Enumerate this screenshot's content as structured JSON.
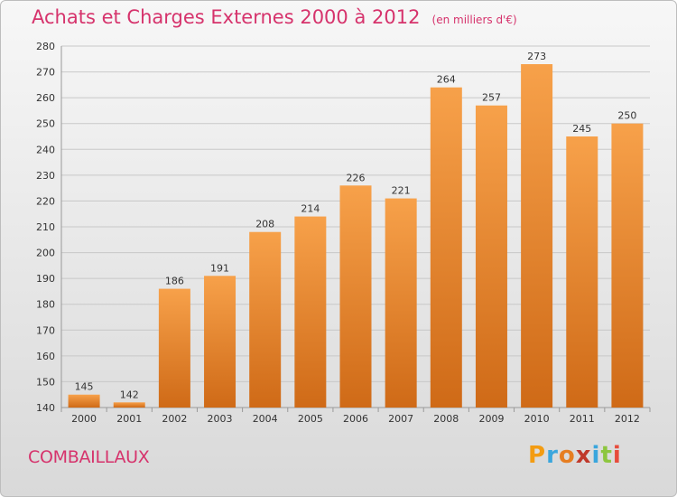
{
  "header": {
    "title": "Achats et Charges Externes 2000 à 2012",
    "unit": "(en milliers d'€)"
  },
  "footer": {
    "commune": "COMBAILLAUX",
    "logo": "Proxiti",
    "logo_colors": [
      "#f39c12",
      "#3aa6dd",
      "#e67e22",
      "#c0392b",
      "#3aa6dd",
      "#8dc63f",
      "#e74c3c"
    ]
  },
  "chart_data": {
    "type": "bar",
    "title": "Achats et Charges Externes 2000 à 2012",
    "subtitle": "(en milliers d'€)",
    "xlabel": "",
    "ylabel": "",
    "categories": [
      "2000",
      "2001",
      "2002",
      "2003",
      "2004",
      "2005",
      "2006",
      "2007",
      "2008",
      "2009",
      "2010",
      "2011",
      "2012"
    ],
    "values": [
      145,
      142,
      186,
      191,
      208,
      214,
      226,
      221,
      264,
      257,
      273,
      245,
      250
    ],
    "ylim": [
      140,
      280
    ],
    "yticks": [
      140,
      150,
      160,
      170,
      180,
      190,
      200,
      210,
      220,
      230,
      240,
      250,
      260,
      270,
      280
    ],
    "grid": true,
    "legend": "none",
    "bar_color_top": "#f7a14a",
    "bar_color_bottom": "#cf6a17",
    "grid_color": "#c8c8c8"
  }
}
